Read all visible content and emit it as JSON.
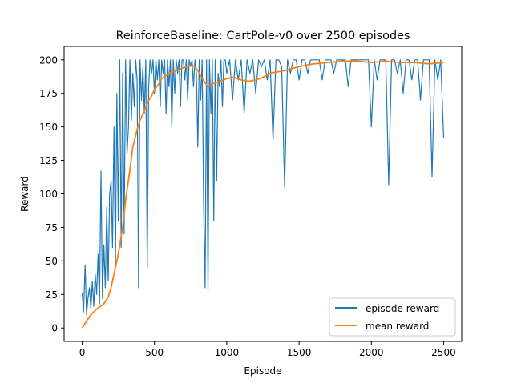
{
  "chart_data": {
    "type": "line",
    "title": "ReinforceBaseline: CartPole-v0 over 2500 episodes",
    "xlabel": "Episode",
    "ylabel": "Reward",
    "xlim": [
      -125,
      2625
    ],
    "ylim": [
      -10,
      210
    ],
    "xticks": [
      0,
      500,
      1000,
      1500,
      2000,
      2500
    ],
    "yticks": [
      0,
      25,
      50,
      75,
      100,
      125,
      150,
      175,
      200
    ],
    "legend_position": "lower right",
    "grid": false,
    "series": [
      {
        "name": "episode reward",
        "color": "#1f77b4",
        "x": [
          0,
          10,
          20,
          30,
          40,
          50,
          60,
          70,
          80,
          90,
          100,
          110,
          120,
          130,
          140,
          150,
          160,
          170,
          180,
          190,
          200,
          210,
          220,
          230,
          240,
          250,
          260,
          270,
          280,
          290,
          300,
          310,
          320,
          330,
          340,
          350,
          360,
          370,
          380,
          390,
          400,
          410,
          420,
          430,
          440,
          450,
          460,
          470,
          480,
          490,
          500,
          510,
          520,
          530,
          540,
          550,
          560,
          570,
          580,
          590,
          600,
          610,
          620,
          630,
          640,
          650,
          660,
          670,
          680,
          690,
          700,
          710,
          720,
          730,
          740,
          750,
          760,
          770,
          780,
          790,
          800,
          810,
          820,
          830,
          840,
          850,
          860,
          870,
          880,
          890,
          900,
          910,
          920,
          930,
          940,
          950,
          960,
          970,
          980,
          990,
          1000,
          1020,
          1040,
          1060,
          1080,
          1100,
          1120,
          1140,
          1160,
          1180,
          1200,
          1220,
          1240,
          1260,
          1280,
          1300,
          1320,
          1340,
          1360,
          1380,
          1400,
          1420,
          1440,
          1460,
          1480,
          1500,
          1520,
          1540,
          1560,
          1580,
          1600,
          1620,
          1640,
          1660,
          1680,
          1700,
          1720,
          1740,
          1760,
          1780,
          1800,
          1820,
          1840,
          1860,
          1880,
          1900,
          1920,
          1940,
          1960,
          1980,
          2000,
          2020,
          2040,
          2060,
          2080,
          2100,
          2120,
          2140,
          2160,
          2180,
          2200,
          2220,
          2240,
          2260,
          2280,
          2300,
          2320,
          2340,
          2360,
          2380,
          2400,
          2420,
          2440,
          2460,
          2480,
          2500
        ],
        "y": [
          26,
          12,
          47,
          10,
          22,
          30,
          14,
          35,
          16,
          40,
          25,
          55,
          18,
          117,
          22,
          62,
          30,
          90,
          35,
          100,
          110,
          60,
          150,
          45,
          175,
          80,
          200,
          60,
          190,
          70,
          200,
          130,
          150,
          200,
          155,
          190,
          165,
          200,
          185,
          30,
          200,
          170,
          195,
          160,
          200,
          45,
          180,
          200,
          190,
          200,
          175,
          200,
          185,
          200,
          165,
          200,
          190,
          200,
          160,
          200,
          180,
          200,
          150,
          200,
          175,
          200,
          190,
          200,
          165,
          200,
          200,
          185,
          200,
          170,
          200,
          195,
          200,
          180,
          200,
          190,
          135,
          200,
          170,
          200,
          90,
          30,
          200,
          28,
          200,
          160,
          200,
          80,
          200,
          110,
          190,
          180,
          200,
          165,
          200,
          200,
          190,
          200,
          170,
          200,
          185,
          200,
          160,
          200,
          190,
          200,
          175,
          200,
          195,
          200,
          185,
          200,
          140,
          200,
          200,
          195,
          105,
          200,
          190,
          200,
          200,
          185,
          200,
          200,
          190,
          200,
          200,
          200,
          200,
          185,
          200,
          200,
          200,
          190,
          200,
          200,
          200,
          200,
          180,
          200,
          200,
          200,
          200,
          200,
          200,
          200,
          150,
          200,
          185,
          200,
          200,
          200,
          107,
          200,
          200,
          190,
          200,
          175,
          200,
          200,
          185,
          200,
          200,
          170,
          200,
          200,
          200,
          113,
          200,
          185,
          200,
          142
        ]
      },
      {
        "name": "mean reward",
        "color": "#ff7f0e",
        "x": [
          0,
          30,
          60,
          100,
          150,
          180,
          200,
          220,
          250,
          280,
          300,
          330,
          350,
          380,
          400,
          430,
          450,
          480,
          500,
          530,
          550,
          600,
          650,
          700,
          750,
          780,
          800,
          820,
          850,
          870,
          900,
          950,
          1000,
          1050,
          1100,
          1150,
          1200,
          1250,
          1300,
          1350,
          1400,
          1500,
          1550,
          1600,
          1700,
          1800,
          1900,
          2000,
          2100,
          2200,
          2300,
          2400,
          2500
        ],
        "y": [
          0,
          5,
          10,
          14,
          18,
          23,
          30,
          40,
          55,
          75,
          95,
          118,
          135,
          148,
          155,
          162,
          168,
          173,
          178,
          182,
          186,
          190,
          192,
          194,
          196,
          195,
          192,
          188,
          183,
          180,
          182,
          184,
          186,
          187,
          185,
          184,
          185,
          187,
          190,
          191,
          192,
          195,
          196,
          197,
          198,
          199,
          199,
          198,
          199,
          198,
          198,
          197,
          198
        ]
      }
    ]
  }
}
